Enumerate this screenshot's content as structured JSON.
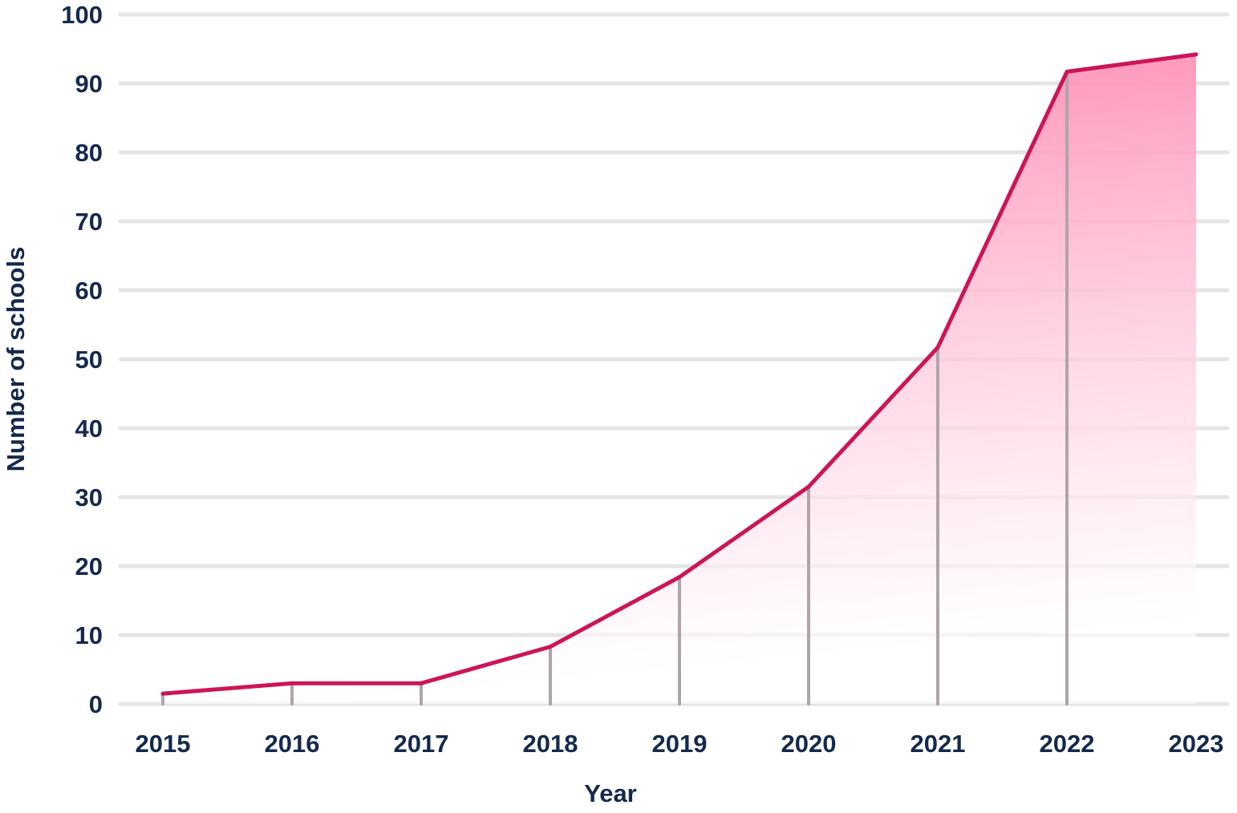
{
  "chart_data": {
    "type": "area",
    "title": "",
    "xlabel": "Year",
    "ylabel": "Number of schools",
    "categories": [
      "2015",
      "2016",
      "2017",
      "2018",
      "2019",
      "2020",
      "2021",
      "2022",
      "2023"
    ],
    "values": [
      1.5,
      3,
      3,
      8.3,
      18.4,
      31.5,
      51.7,
      91.7,
      94.2
    ],
    "ylim": [
      0,
      100
    ],
    "yticks": [
      "0",
      "10",
      "20",
      "30",
      "40",
      "50",
      "60",
      "70",
      "80",
      "90",
      "100"
    ],
    "grid": true,
    "legend": "none",
    "colors": {
      "line": "#cc1559",
      "fill_top": "#ff82ad",
      "fill_bottom": "#ffffff",
      "grid": "#e5e5e5",
      "drop": "#b0a4aa",
      "text": "#14294d"
    }
  }
}
